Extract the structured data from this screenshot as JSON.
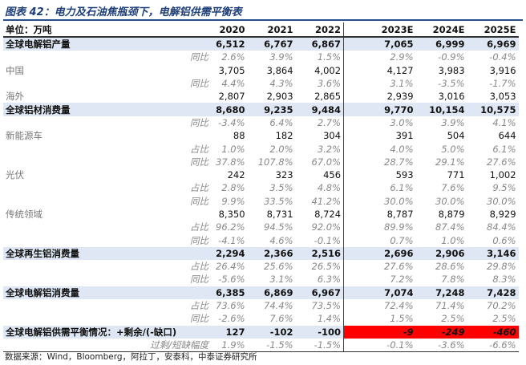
{
  "title": "图表 42：电力及石油焦瓶颈下，电解铝供需平衡表",
  "header": {
    "unit": "单位：万吨",
    "years": [
      "2020",
      "2021",
      "2022",
      "2023E",
      "2024E",
      "2025E"
    ]
  },
  "rows": [
    {
      "label": "全球电解铝产量",
      "values": [
        "6,512",
        "6,767",
        "6,867",
        "7,065",
        "6,999",
        "6,969"
      ]
    },
    {
      "label": "同比",
      "values": [
        "2.6%",
        "3.9%",
        "1.5%",
        "2.9%",
        "-0.9%",
        "-0.4%"
      ]
    },
    {
      "label": "中国",
      "values": [
        "3,705",
        "3,864",
        "4,002",
        "4,127",
        "3,983",
        "3,916"
      ]
    },
    {
      "label": "同比",
      "values": [
        "4.4%",
        "4.3%",
        "3.6%",
        "3.1%",
        "-3.5%",
        "-1.7%"
      ]
    },
    {
      "label": "海外",
      "values": [
        "2,807",
        "2,903",
        "2,865",
        "2,939",
        "3,016",
        "3,053"
      ]
    },
    {
      "label": "全球铝材消费量",
      "values": [
        "8,680",
        "9,235",
        "9,484",
        "9,770",
        "10,154",
        "10,575"
      ]
    },
    {
      "label": "同比",
      "values": [
        "-3.4%",
        "6.4%",
        "2.7%",
        "3.0%",
        "3.9%",
        "4.1%"
      ]
    },
    {
      "label": "新能源车",
      "values": [
        "88",
        "182",
        "304",
        "391",
        "504",
        "644"
      ]
    },
    {
      "label": "占比",
      "values": [
        "1.0%",
        "2.0%",
        "3.2%",
        "4.0%",
        "5.0%",
        "6.1%"
      ]
    },
    {
      "label": "同比",
      "values": [
        "37.8%",
        "107.8%",
        "67.0%",
        "28.7%",
        "29.1%",
        "27.6%"
      ]
    },
    {
      "label": "光伏",
      "values": [
        "242",
        "323",
        "456",
        "593",
        "771",
        "1,002"
      ]
    },
    {
      "label": "占比",
      "values": [
        "2.8%",
        "3.5%",
        "4.8%",
        "6.1%",
        "7.6%",
        "9.5%"
      ]
    },
    {
      "label": "同比",
      "values": [
        "9.9%",
        "33.5%",
        "41.2%",
        "30.0%",
        "30.0%",
        "30.0%"
      ]
    },
    {
      "label": "传统领域",
      "values": [
        "8,350",
        "8,731",
        "8,724",
        "8,787",
        "8,879",
        "8,929"
      ]
    },
    {
      "label": "占比",
      "values": [
        "96.2%",
        "94.5%",
        "92.0%",
        "89.9%",
        "87.4%",
        "84.4%"
      ]
    },
    {
      "label": "同比",
      "values": [
        "-4.1%",
        "4.6%",
        "-0.1%",
        "0.7%",
        "1.0%",
        "0.6%"
      ]
    },
    {
      "label": "全球再生铝消费量",
      "values": [
        "2,294",
        "2,366",
        "2,516",
        "2,696",
        "2,906",
        "3,146"
      ]
    },
    {
      "label": "占比",
      "values": [
        "26.4%",
        "25.6%",
        "26.5%",
        "27.6%",
        "28.6%",
        "29.8%"
      ]
    },
    {
      "label": "同比",
      "values": [
        "-5.6%",
        "3.1%",
        "6.3%",
        "7.2%",
        "7.8%",
        "8.3%"
      ]
    },
    {
      "label": "全球电解铝消费量",
      "values": [
        "6,385",
        "6,869",
        "6,967",
        "7,074",
        "7,248",
        "7,428"
      ]
    },
    {
      "label": "占比",
      "values": [
        "73.6%",
        "74.4%",
        "73.5%",
        "72.4%",
        "71.4%",
        "70.2%"
      ]
    },
    {
      "label": "同比",
      "values": [
        "-2.6%",
        "7.6%",
        "1.4%",
        "1.5%",
        "2.5%",
        "2.5%"
      ]
    },
    {
      "label": "全球电解铝供需平衡情况：+剩余/(-缺口)",
      "values": [
        "127",
        "-102",
        "-100",
        "-9",
        "-249",
        "-460"
      ]
    },
    {
      "label": "过剩/短缺幅度",
      "values": [
        "1.9%",
        "-1.5%",
        "-1.5%",
        "-0.1%",
        "-3.6%",
        "-6.6%"
      ]
    }
  ],
  "source": "数据来源：Wind，Bloomberg，阿拉丁，安泰科，中泰证券研究所"
}
